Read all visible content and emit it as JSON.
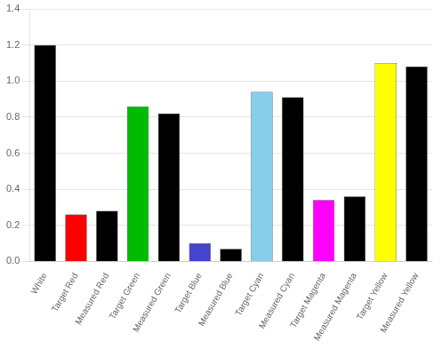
{
  "chart_data": {
    "type": "bar",
    "categories": [
      "White",
      "Target Red",
      "Measured Red",
      "Target Green",
      "Measured Green",
      "Target Blue",
      "Measured Blue",
      "Target Cyan",
      "Measured Cyan",
      "Target Magenta",
      "Measured Magenta",
      "Target Yellow",
      "Measured Yellow"
    ],
    "values": [
      1.2,
      0.26,
      0.28,
      0.86,
      0.82,
      0.1,
      0.07,
      0.94,
      0.91,
      0.34,
      0.36,
      1.1,
      1.08
    ],
    "colors": [
      "#000000",
      "#ff0000",
      "#000000",
      "#00bb00",
      "#000000",
      "#4444cc",
      "#000000",
      "#87ceeb",
      "#000000",
      "#ff00ff",
      "#000000",
      "#ffff00",
      "#000000"
    ],
    "ylim": [
      0,
      1.4
    ],
    "yticks": [
      {
        "value": 0,
        "label": "0.0"
      },
      0.2,
      0.4,
      0.6,
      0.8,
      {
        "value": 1.0,
        "label": "1.0"
      },
      1.2,
      1.4
    ],
    "grid": true
  }
}
